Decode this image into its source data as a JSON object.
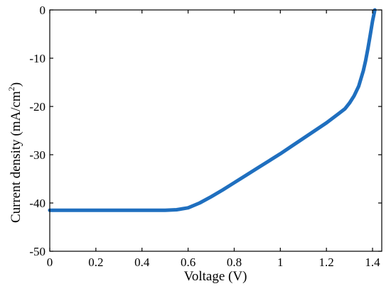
{
  "chart_data": {
    "type": "line",
    "title": "",
    "xlabel": "Voltage (V)",
    "ylabel_main": "Current density  (mA/cm",
    "ylabel_sup": "2",
    "ylabel_close": ")",
    "xlim": [
      0,
      1.44
    ],
    "ylim": [
      -50,
      0
    ],
    "xticks": [
      0,
      0.2,
      0.4,
      0.6,
      0.8,
      1,
      1.2,
      1.4
    ],
    "xtick_labels": [
      "0",
      "0.2",
      "0.4",
      "0.6",
      "0.8",
      "1",
      "1.2",
      "1.4"
    ],
    "yticks": [
      0,
      -10,
      -20,
      -30,
      -40,
      -50
    ],
    "ytick_labels": [
      "0",
      "-10",
      "-20",
      "-30",
      "-40",
      "-50"
    ],
    "grid": false,
    "series": [
      {
        "color": "#1f6fbf",
        "x": [
          0,
          0.1,
          0.2,
          0.3,
          0.4,
          0.5,
          0.55,
          0.6,
          0.65,
          0.7,
          0.75,
          0.8,
          0.85,
          0.9,
          0.95,
          1.0,
          1.05,
          1.1,
          1.15,
          1.2,
          1.25,
          1.28,
          1.3,
          1.32,
          1.34,
          1.36,
          1.37,
          1.38,
          1.39,
          1.4,
          1.41
        ],
        "y": [
          -41.5,
          -41.5,
          -41.5,
          -41.5,
          -41.5,
          -41.5,
          -41.4,
          -41.0,
          -40.0,
          -38.7,
          -37.3,
          -35.8,
          -34.3,
          -32.8,
          -31.3,
          -29.8,
          -28.2,
          -26.6,
          -25.0,
          -23.4,
          -21.6,
          -20.5,
          -19.3,
          -17.8,
          -15.8,
          -12.6,
          -10.5,
          -8.0,
          -5.2,
          -2.3,
          0
        ]
      }
    ]
  }
}
